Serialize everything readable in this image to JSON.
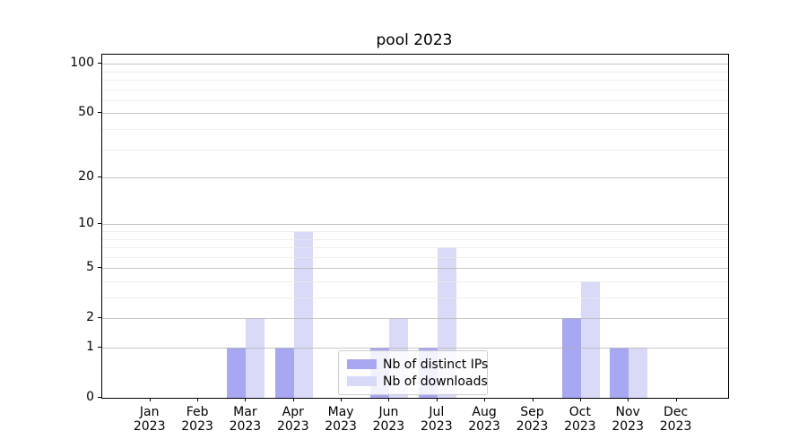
{
  "chart_data": {
    "type": "bar",
    "title": "pool 2023",
    "x_tick_labels": [
      [
        "Jan",
        "2023"
      ],
      [
        "Feb",
        "2023"
      ],
      [
        "Mar",
        "2023"
      ],
      [
        "Apr",
        "2023"
      ],
      [
        "May",
        "2023"
      ],
      [
        "Jun",
        "2023"
      ],
      [
        "Jul",
        "2023"
      ],
      [
        "Aug",
        "2023"
      ],
      [
        "Sep",
        "2023"
      ],
      [
        "Oct",
        "2023"
      ],
      [
        "Nov",
        "2023"
      ],
      [
        "Dec",
        "2023"
      ]
    ],
    "series": [
      {
        "name": "Nb of distinct IPs",
        "color": "#a7a7f2",
        "values": [
          0,
          0,
          1,
          1,
          0,
          1,
          1,
          0,
          0,
          2,
          1,
          0
        ]
      },
      {
        "name": "Nb of downloads",
        "color": "#d9d9f8",
        "values": [
          0,
          0,
          2,
          9,
          0,
          2,
          7,
          0,
          0,
          4,
          1,
          0
        ]
      }
    ],
    "y_axis": {
      "scale": "log10(value+1)",
      "major_ticks": [
        0,
        1,
        2,
        5,
        10,
        20,
        50,
        100
      ],
      "minor_gridlines": [
        3,
        4,
        6,
        7,
        8,
        9,
        30,
        40,
        60,
        70,
        80,
        90
      ],
      "ylim": [
        0,
        115
      ]
    },
    "legend": {
      "position": "lower center",
      "entries": [
        "Nb of distinct IPs",
        "Nb of downloads"
      ]
    },
    "colors": {
      "major_grid": "#b4b4b4",
      "minor_grid": "#e9e9e9",
      "spine": "#000000",
      "text": "#000000",
      "background": "#ffffff"
    },
    "grid": "both-major-and-minor"
  }
}
